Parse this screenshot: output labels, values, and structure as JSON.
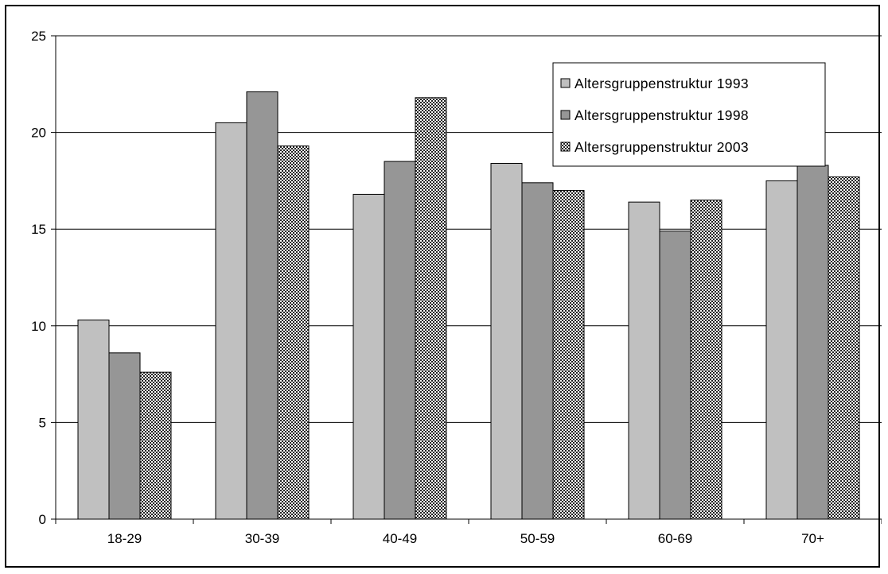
{
  "chart_data": {
    "type": "bar",
    "categories": [
      "18-29",
      "30-39",
      "40-49",
      "50-59",
      "60-69",
      "70+"
    ],
    "series": [
      {
        "name": "Altersgruppenstruktur 1993",
        "values": [
          10.3,
          20.5,
          16.8,
          18.4,
          16.4,
          17.5
        ],
        "color": "#c0c0c0",
        "pattern": "solid"
      },
      {
        "name": "Altersgruppenstruktur 1998",
        "values": [
          8.6,
          22.1,
          18.5,
          17.4,
          14.9,
          18.3
        ],
        "color": "#969696",
        "pattern": "solid"
      },
      {
        "name": "Altersgruppenstruktur 2003",
        "values": [
          7.6,
          19.3,
          21.8,
          17.0,
          16.5,
          17.7
        ],
        "color": "#333333",
        "pattern": "dotted"
      }
    ],
    "ylim": [
      0,
      25
    ],
    "yticks": [
      0,
      5,
      10,
      15,
      20,
      25
    ],
    "grid": true,
    "legend_position": "top-right",
    "title": "",
    "xlabel": "",
    "ylabel": ""
  }
}
